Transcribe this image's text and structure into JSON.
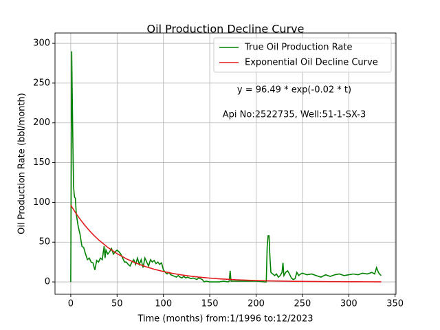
{
  "chart_data": {
    "type": "line",
    "title": "Oil Production Decline Curve",
    "xlabel": "Time (months) from:1/1996 to:12/2023",
    "ylabel": "Oil Production Rate (bbl/month)",
    "annotations": [
      "y = 96.49 * exp(-0.02 * t)",
      "Api No:2522735, Well:51-1-SX-3"
    ],
    "xlim": [
      -17,
      351
    ],
    "ylim": [
      -15.5,
      313
    ],
    "xticks": [
      0,
      50,
      100,
      150,
      200,
      250,
      300,
      350
    ],
    "yticks": [
      0,
      50,
      100,
      150,
      200,
      250,
      300
    ],
    "grid": true,
    "legend": "upper right",
    "series": [
      {
        "name": "True Oil Production Rate",
        "color": "#008000",
        "x": [
          0,
          1,
          2,
          3,
          4,
          5,
          6,
          8,
          10,
          12,
          14,
          16,
          18,
          20,
          22,
          24,
          26,
          28,
          30,
          32,
          34,
          36,
          37,
          38,
          40,
          42,
          44,
          46,
          48,
          50,
          52,
          54,
          56,
          58,
          60,
          62,
          64,
          66,
          68,
          70,
          72,
          74,
          76,
          78,
          80,
          82,
          84,
          86,
          88,
          90,
          92,
          94,
          96,
          98,
          100,
          102,
          104,
          106,
          108,
          110,
          112,
          114,
          116,
          118,
          120,
          122,
          124,
          126,
          128,
          130,
          132,
          134,
          136,
          138,
          140,
          142,
          144,
          146,
          150,
          160,
          165,
          170,
          171,
          172,
          173,
          180,
          190,
          200,
          210,
          211,
          212,
          213,
          214,
          215,
          216,
          218,
          220,
          222,
          224,
          226,
          228,
          229,
          230,
          232,
          234,
          236,
          238,
          240,
          242,
          244,
          246,
          248,
          250,
          255,
          260,
          265,
          270,
          275,
          280,
          285,
          290,
          295,
          300,
          305,
          310,
          315,
          320,
          325,
          328,
          330,
          332,
          334,
          335
        ],
        "values": [
          0,
          290,
          200,
          120,
          107,
          105,
          85,
          70,
          60,
          45,
          43,
          35,
          28,
          30,
          25,
          24,
          15,
          27,
          25,
          30,
          28,
          45,
          30,
          40,
          35,
          38,
          42,
          35,
          38,
          40,
          38,
          35,
          30,
          25,
          25,
          22,
          20,
          25,
          28,
          22,
          30,
          22,
          28,
          18,
          30,
          25,
          20,
          28,
          25,
          27,
          23,
          25,
          22,
          24,
          15,
          12,
          10,
          12,
          9,
          8,
          7,
          6,
          8,
          6,
          5,
          7,
          5,
          6,
          5,
          4,
          5,
          4,
          3,
          5,
          4,
          3,
          0,
          1,
          0,
          0,
          1,
          0,
          1,
          14,
          1,
          1,
          1,
          1,
          0,
          0,
          45,
          58,
          58,
          30,
          12,
          10,
          8,
          10,
          6,
          8,
          12,
          24,
          8,
          12,
          14,
          10,
          5,
          3,
          4,
          12,
          8,
          10,
          11,
          9,
          10,
          8,
          6,
          9,
          7,
          9,
          10,
          8,
          9,
          10,
          9,
          11,
          10,
          12,
          10,
          18,
          12,
          9,
          8
        ]
      },
      {
        "name": "Exponential Oil Decline Curve",
        "color": "#e31a1c",
        "x": [
          0,
          5,
          10,
          15,
          20,
          25,
          30,
          40,
          50,
          60,
          70,
          80,
          90,
          100,
          110,
          120,
          130,
          140,
          150,
          160,
          170,
          180,
          190,
          200,
          210,
          220,
          230,
          240,
          250,
          260,
          270,
          280,
          290,
          300,
          310,
          320,
          330,
          335
        ],
        "values": [
          96.49,
          87.3,
          79.0,
          71.5,
          64.68,
          58.5,
          52.95,
          43.36,
          35.5,
          29.06,
          23.8,
          19.48,
          15.95,
          13.06,
          10.69,
          8.75,
          7.17,
          5.87,
          4.81,
          3.93,
          3.22,
          2.64,
          2.16,
          1.77,
          1.45,
          1.19,
          0.97,
          0.8,
          0.65,
          0.53,
          0.44,
          0.36,
          0.29,
          0.24,
          0.2,
          0.16,
          0.13,
          0.12
        ]
      }
    ]
  }
}
